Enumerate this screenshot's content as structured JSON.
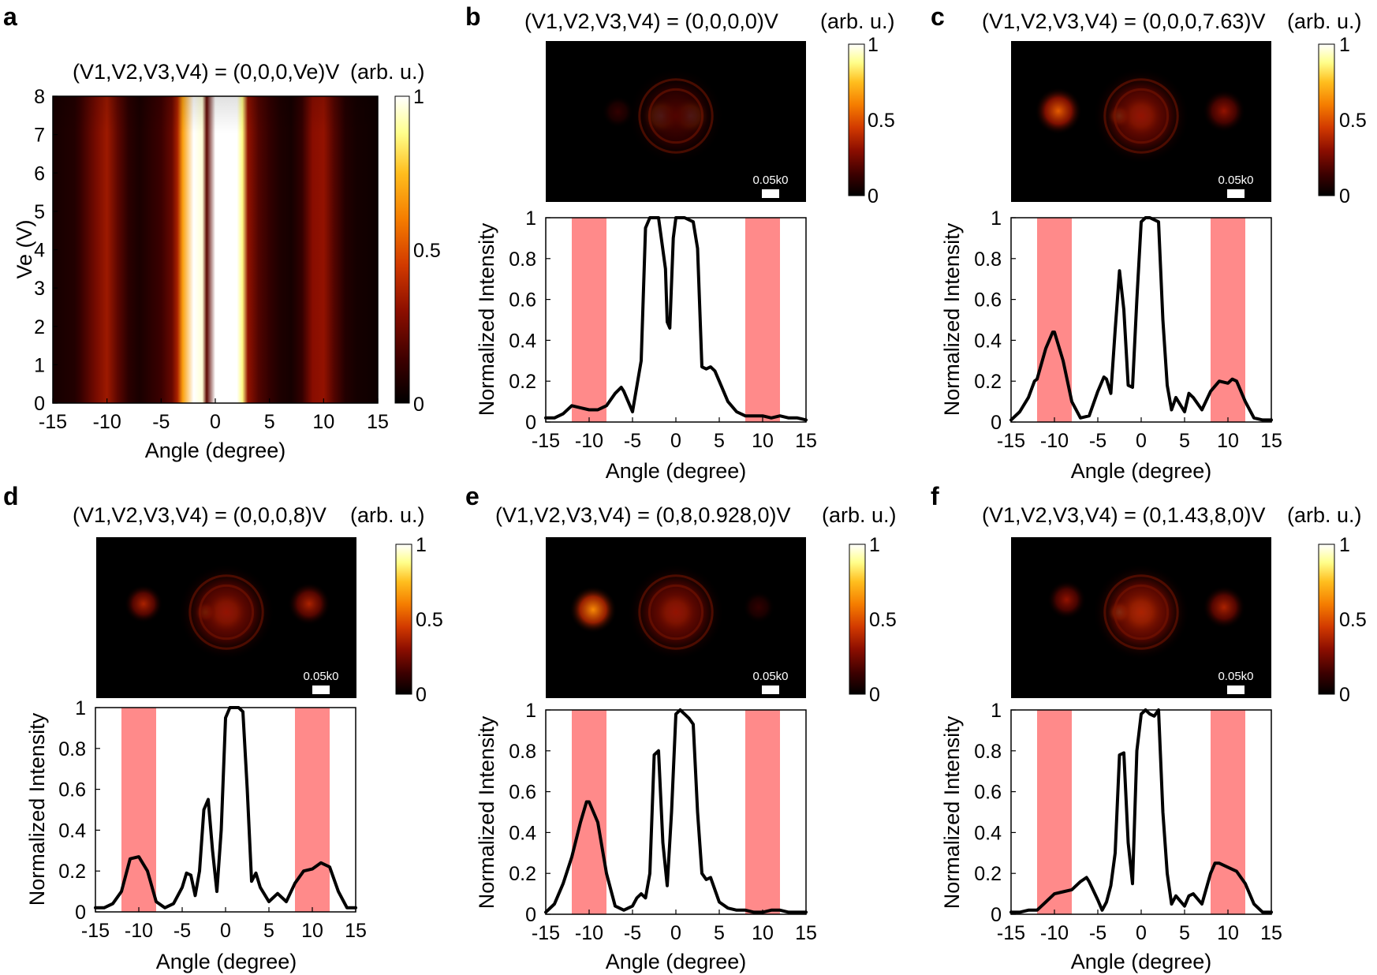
{
  "colors": {
    "band": "#ff8a8a",
    "line": "#000000",
    "colormap": [
      "#000000",
      "#3c0000",
      "#8c0e00",
      "#d23a00",
      "#f57d00",
      "#ffbe1e",
      "#ffff8c",
      "#ffffff"
    ]
  },
  "chart_data": [
    {
      "panel": "a",
      "type": "heatmap",
      "title": "(V1,V2,V3,V4) = (0,0,0,Ve)V",
      "colorbar_label": "(arb. u.)",
      "xlabel": "Angle (degree)",
      "ylabel": "Ve (V)",
      "xlim": [
        -15,
        15
      ],
      "ylim": [
        0,
        8
      ],
      "xticks": [
        "-15",
        "-10",
        "-5",
        "0",
        "5",
        "10",
        "15"
      ],
      "yticks": [
        "0",
        "1",
        "2",
        "3",
        "4",
        "5",
        "6",
        "7",
        "8"
      ],
      "colorbar_ticks": [
        "0",
        "0.5",
        "1"
      ],
      "column_profile": {
        "angle": [
          -15,
          -13,
          -12.5,
          -11,
          -10,
          -9,
          -8,
          -7,
          -6,
          -5,
          -4,
          -3.5,
          -3,
          -2,
          -1.2,
          -0.8,
          0,
          1,
          2,
          2.5,
          3,
          4,
          5,
          6,
          7,
          8,
          9,
          10,
          11,
          12,
          13,
          14,
          15
        ],
        "intensity": [
          0.05,
          0.08,
          0.12,
          0.25,
          0.32,
          0.2,
          0.1,
          0.06,
          0.1,
          0.14,
          0.22,
          0.35,
          0.65,
          1.0,
          0.95,
          0.2,
          1.0,
          1.0,
          1.0,
          0.85,
          0.3,
          0.18,
          0.12,
          0.07,
          0.05,
          0.12,
          0.28,
          0.3,
          0.18,
          0.08,
          0.05,
          0.04,
          0.03
        ]
      }
    },
    {
      "panel": "b",
      "type": "line",
      "title": "(V1,V2,V3,V4) = (0,0,0,0)V",
      "colorbar_label": "(arb. u.)",
      "scale_bar_label": "0.05k0",
      "xlabel": "Angle (degree)",
      "ylabel": "Normalized Intensity",
      "xlim": [
        -15,
        15
      ],
      "ylim": [
        0,
        1
      ],
      "xticks": [
        "-15",
        "-10",
        "-5",
        "0",
        "5",
        "10",
        "15"
      ],
      "yticks": [
        "0",
        "0.2",
        "0.4",
        "0.6",
        "0.8",
        "1"
      ],
      "colorbar_ticks": [
        "0",
        "0.5",
        "1"
      ],
      "highlight_bands": [
        [
          -12,
          -8
        ],
        [
          8,
          12
        ]
      ],
      "series": [
        {
          "name": "intensity",
          "x": [
            -15,
            -14,
            -13,
            -12,
            -11,
            -10,
            -9,
            -8,
            -7,
            -6.3,
            -6,
            -5,
            -4,
            -3.5,
            -3,
            -2,
            -1.2,
            -1,
            -0.7,
            -0.3,
            0,
            1,
            2,
            2.5,
            3,
            3.5,
            4,
            4.5,
            5,
            6,
            7,
            8,
            9,
            10,
            11,
            12,
            13,
            14,
            15
          ],
          "y": [
            0.02,
            0.02,
            0.04,
            0.08,
            0.07,
            0.06,
            0.06,
            0.08,
            0.14,
            0.17,
            0.15,
            0.05,
            0.3,
            0.95,
            1.0,
            1.0,
            0.75,
            0.49,
            0.46,
            0.9,
            1.0,
            1.0,
            0.98,
            0.85,
            0.27,
            0.26,
            0.27,
            0.25,
            0.2,
            0.1,
            0.05,
            0.03,
            0.03,
            0.03,
            0.02,
            0.03,
            0.02,
            0.02,
            0.01
          ]
        }
      ],
      "spectrum_spots": [
        {
          "kx": -1.7,
          "ky": 0,
          "r": 1.7,
          "intensity": 1.0
        },
        {
          "kx": 1.7,
          "ky": 0,
          "r": 1.7,
          "intensity": 1.0
        },
        {
          "kx": 0,
          "ky": 0,
          "r": 4.5,
          "intensity": 0.18
        },
        {
          "kx": -7,
          "ky": 0.5,
          "r": 1.5,
          "intensity": 0.12
        }
      ]
    },
    {
      "panel": "c",
      "type": "line",
      "title": "(V1,V2,V3,V4) = (0,0,0,7.63)V",
      "colorbar_label": "(arb. u.)",
      "scale_bar_label": "0.05k0",
      "xlabel": "Angle (degree)",
      "ylabel": "Normalized Intensity",
      "xlim": [
        -15,
        15
      ],
      "ylim": [
        0,
        1
      ],
      "xticks": [
        "-15",
        "-10",
        "-5",
        "0",
        "5",
        "10",
        "15"
      ],
      "yticks": [
        "0",
        "0.2",
        "0.4",
        "0.6",
        "0.8",
        "1"
      ],
      "colorbar_ticks": [
        "0",
        "0.5",
        "1"
      ],
      "highlight_bands": [
        [
          -12,
          -8
        ],
        [
          8,
          12
        ]
      ],
      "series": [
        {
          "name": "intensity",
          "x": [
            -15,
            -14,
            -13,
            -12.3,
            -12,
            -11,
            -10.2,
            -10,
            -9,
            -8,
            -7,
            -6,
            -5,
            -4.3,
            -4,
            -3.5,
            -3,
            -2.5,
            -2,
            -1.5,
            -1,
            -0.5,
            0,
            0.5,
            1,
            1.5,
            2,
            2.5,
            3,
            3.5,
            4,
            5,
            5.5,
            6,
            7,
            8,
            9,
            10,
            10.5,
            11,
            12,
            13,
            14,
            15
          ],
          "y": [
            0.01,
            0.05,
            0.12,
            0.2,
            0.21,
            0.36,
            0.44,
            0.44,
            0.3,
            0.1,
            0.02,
            0.03,
            0.15,
            0.22,
            0.21,
            0.14,
            0.45,
            0.74,
            0.55,
            0.18,
            0.17,
            0.6,
            0.98,
            1.0,
            1.0,
            0.99,
            0.98,
            0.5,
            0.18,
            0.06,
            0.12,
            0.05,
            0.14,
            0.12,
            0.06,
            0.15,
            0.2,
            0.19,
            0.21,
            0.2,
            0.1,
            0.02,
            0.01,
            0.01
          ]
        }
      ],
      "spectrum_spots": [
        {
          "kx": 0,
          "ky": 0,
          "r": 1.8,
          "intensity": 1.0
        },
        {
          "kx": -2.6,
          "ky": 0,
          "r": 1.1,
          "intensity": 0.8
        },
        {
          "kx": 0,
          "ky": 0,
          "r": 4.5,
          "intensity": 0.3
        },
        {
          "kx": -10,
          "ky": 0.6,
          "r": 2.2,
          "intensity": 0.5
        },
        {
          "kx": 10,
          "ky": 0.6,
          "r": 2.0,
          "intensity": 0.3
        }
      ]
    },
    {
      "panel": "d",
      "type": "line",
      "title": "(V1,V2,V3,V4) = (0,0,0,8)V",
      "colorbar_label": "(arb. u.)",
      "scale_bar_label": "0.05k0",
      "xlabel": "Angle (degree)",
      "ylabel": "Normalized Intensity",
      "xlim": [
        -15,
        15
      ],
      "ylim": [
        0,
        1
      ],
      "xticks": [
        "-15",
        "-10",
        "-5",
        "0",
        "5",
        "10",
        "15"
      ],
      "yticks": [
        "0",
        "0.2",
        "0.4",
        "0.6",
        "0.8",
        "1"
      ],
      "colorbar_ticks": [
        "0",
        "0.5",
        "1"
      ],
      "highlight_bands": [
        [
          -12,
          -8
        ],
        [
          8,
          12
        ]
      ],
      "series": [
        {
          "name": "intensity",
          "x": [
            -15,
            -14,
            -13,
            -12,
            -11,
            -10,
            -9,
            -8,
            -7,
            -6,
            -5,
            -4.5,
            -4,
            -3.5,
            -3,
            -2.5,
            -2,
            -1.5,
            -1,
            -0.5,
            0,
            0.5,
            1,
            1.5,
            2,
            2.5,
            3,
            3.5,
            4,
            5,
            6,
            7,
            8,
            9,
            10,
            11,
            12,
            13,
            14,
            15
          ],
          "y": [
            0.02,
            0.02,
            0.04,
            0.1,
            0.26,
            0.27,
            0.2,
            0.05,
            0.02,
            0.04,
            0.12,
            0.19,
            0.18,
            0.08,
            0.2,
            0.5,
            0.55,
            0.3,
            0.1,
            0.4,
            0.95,
            1.0,
            1.0,
            1.0,
            0.98,
            0.6,
            0.15,
            0.19,
            0.12,
            0.05,
            0.09,
            0.05,
            0.14,
            0.2,
            0.21,
            0.24,
            0.22,
            0.1,
            0.02,
            0.02
          ]
        }
      ],
      "spectrum_spots": [
        {
          "kx": 0,
          "ky": 0,
          "r": 1.8,
          "intensity": 1.0
        },
        {
          "kx": -2.5,
          "ky": 0,
          "r": 1.0,
          "intensity": 0.7
        },
        {
          "kx": 0,
          "ky": 0,
          "r": 4.5,
          "intensity": 0.3
        },
        {
          "kx": -10,
          "ky": 1,
          "r": 1.8,
          "intensity": 0.35
        },
        {
          "kx": 10,
          "ky": 1,
          "r": 2.0,
          "intensity": 0.35
        }
      ]
    },
    {
      "panel": "e",
      "type": "line",
      "title": "(V1,V2,V3,V4) = (0,8,0.928,0)V",
      "colorbar_label": "(arb. u.)",
      "scale_bar_label": "0.05k0",
      "xlabel": "Angle (degree)",
      "ylabel": "Normalized Intensity",
      "xlim": [
        -15,
        15
      ],
      "ylim": [
        0,
        1
      ],
      "xticks": [
        "-15",
        "-10",
        "-5",
        "0",
        "5",
        "10",
        "15"
      ],
      "yticks": [
        "0",
        "0.2",
        "0.4",
        "0.6",
        "0.8",
        "1"
      ],
      "colorbar_ticks": [
        "0",
        "0.5",
        "1"
      ],
      "highlight_bands": [
        [
          -12,
          -8
        ],
        [
          8,
          12
        ]
      ],
      "series": [
        {
          "name": "intensity",
          "x": [
            -15,
            -14,
            -13,
            -12,
            -11,
            -10.3,
            -10,
            -9,
            -8,
            -7,
            -6,
            -5,
            -4.5,
            -4,
            -3.5,
            -3,
            -2.5,
            -2,
            -1.5,
            -1,
            -0.5,
            0,
            0.5,
            1,
            1.5,
            2,
            2.5,
            3,
            3.5,
            4,
            5,
            6,
            7,
            8,
            9,
            10,
            11,
            12,
            13,
            14,
            15
          ],
          "y": [
            0.01,
            0.05,
            0.15,
            0.28,
            0.45,
            0.55,
            0.55,
            0.45,
            0.2,
            0.04,
            0.02,
            0.04,
            0.08,
            0.1,
            0.08,
            0.2,
            0.78,
            0.8,
            0.35,
            0.14,
            0.5,
            0.98,
            1.0,
            0.98,
            0.96,
            0.93,
            0.5,
            0.2,
            0.17,
            0.18,
            0.06,
            0.03,
            0.02,
            0.02,
            0.01,
            0.01,
            0.02,
            0.02,
            0.01,
            0.01,
            0.01
          ]
        }
      ],
      "spectrum_spots": [
        {
          "kx": 0,
          "ky": 0,
          "r": 1.8,
          "intensity": 1.0
        },
        {
          "kx": 0,
          "ky": 0,
          "r": 4.5,
          "intensity": 0.3
        },
        {
          "kx": -10,
          "ky": 0.3,
          "r": 2.2,
          "intensity": 0.6
        },
        {
          "kx": 10,
          "ky": 0.6,
          "r": 1.5,
          "intensity": 0.12
        }
      ]
    },
    {
      "panel": "f",
      "type": "line",
      "title": "(V1,V2,V3,V4) = (0,1.43,8,0)V",
      "colorbar_label": "(arb. u.)",
      "scale_bar_label": "0.05k0",
      "xlabel": "Angle (degree)",
      "ylabel": "Normalized Intensity",
      "xlim": [
        -15,
        15
      ],
      "ylim": [
        0,
        1
      ],
      "xticks": [
        "-15",
        "-10",
        "-5",
        "0",
        "5",
        "10",
        "15"
      ],
      "yticks": [
        "0",
        "0.2",
        "0.4",
        "0.6",
        "0.8",
        "1"
      ],
      "colorbar_ticks": [
        "0",
        "0.5",
        "1"
      ],
      "highlight_bands": [
        [
          -12,
          -8
        ],
        [
          8,
          12
        ]
      ],
      "series": [
        {
          "name": "intensity",
          "x": [
            -15,
            -14,
            -13,
            -12,
            -11,
            -10,
            -9,
            -8,
            -7,
            -6.3,
            -6,
            -5,
            -4.5,
            -4,
            -3.5,
            -3,
            -2.5,
            -2,
            -1.5,
            -1,
            -0.5,
            0,
            0.5,
            1,
            1.5,
            2,
            2.5,
            3,
            3.5,
            4,
            5,
            5.5,
            6,
            7,
            8,
            8.5,
            9,
            10,
            11,
            12,
            13,
            14,
            15
          ],
          "y": [
            0.01,
            0.01,
            0.02,
            0.02,
            0.06,
            0.1,
            0.11,
            0.12,
            0.16,
            0.18,
            0.16,
            0.07,
            0.02,
            0.06,
            0.14,
            0.3,
            0.78,
            0.79,
            0.35,
            0.15,
            0.8,
            0.98,
            1.0,
            0.98,
            0.97,
            1.0,
            0.5,
            0.2,
            0.05,
            0.09,
            0.04,
            0.09,
            0.1,
            0.05,
            0.2,
            0.25,
            0.25,
            0.23,
            0.21,
            0.15,
            0.05,
            0.01,
            0.01
          ]
        }
      ],
      "spectrum_spots": [
        {
          "kx": 0,
          "ky": 0,
          "r": 1.8,
          "intensity": 1.0
        },
        {
          "kx": -2.6,
          "ky": 0,
          "r": 1.1,
          "intensity": 0.85
        },
        {
          "kx": 0,
          "ky": 0,
          "r": 4.5,
          "intensity": 0.35
        },
        {
          "kx": -9,
          "ky": 1.5,
          "r": 1.8,
          "intensity": 0.3
        },
        {
          "kx": 10,
          "ky": 0.6,
          "r": 2.0,
          "intensity": 0.35
        }
      ]
    }
  ]
}
